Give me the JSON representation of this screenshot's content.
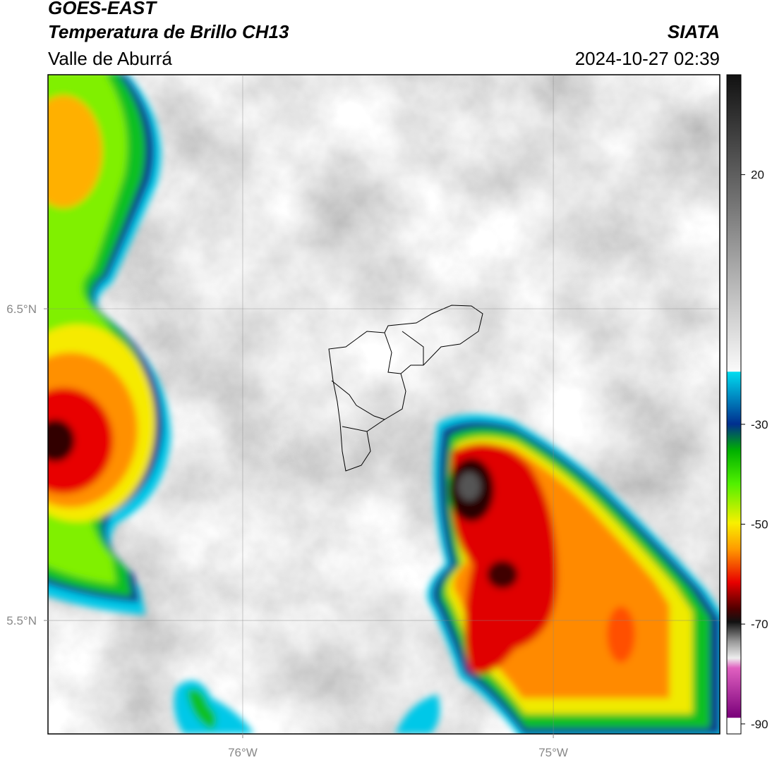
{
  "header": {
    "satellite": "GOES-EAST",
    "product": "Temperatura de Brillo CH13",
    "region": "Valle de Aburrá",
    "source": "SIATA",
    "datetime": "2024-10-27 02:39"
  },
  "map": {
    "xlim": [
      -76.627,
      -74.464
    ],
    "ylim": [
      5.136,
      7.251
    ],
    "xticks": [
      {
        "value": -76,
        "label": "76°W"
      },
      {
        "value": -75,
        "label": "75°W"
      }
    ],
    "yticks": [
      {
        "value": 6.5,
        "label": "6.5°N"
      },
      {
        "value": 5.5,
        "label": "5.5°N"
      }
    ],
    "grid": true
  },
  "colorbar": {
    "lim": [
      -92,
      40
    ],
    "ticks": [
      20,
      -30,
      -50,
      -70,
      -90
    ]
  }
}
